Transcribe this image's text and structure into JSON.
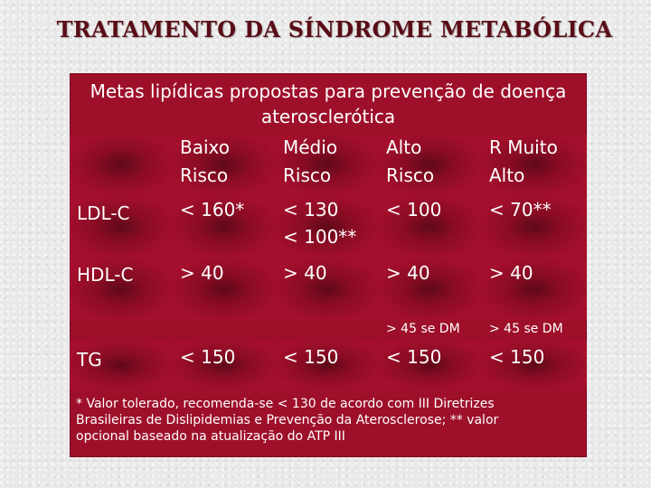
{
  "title": "TRATAMENTO DA SÍNDROME METABÓLICA",
  "heading": {
    "line1": "Metas lipídicas propostas para prevenção de doença",
    "line2": "aterosclerótica"
  },
  "columns": [
    {
      "line1": "Baixo",
      "line2": "Risco"
    },
    {
      "line1": "Médio",
      "line2": "Risco"
    },
    {
      "line1": "Alto",
      "line2": "Risco"
    },
    {
      "line1": "R Muito",
      "line2": "Alto"
    }
  ],
  "rows": {
    "ldl": {
      "label": "LDL-C",
      "baixo": "< 160*",
      "medio": "< 130",
      "medio2": "< 100**",
      "alto": "< 100",
      "muito": "< 70**"
    },
    "hdl": {
      "label": "HDL-C",
      "baixo": "> 40",
      "medio": "> 40",
      "alto": "> 40",
      "alto_note": "> 45 se DM",
      "muito": "> 40",
      "muito_note": "> 45 se DM"
    },
    "tg": {
      "label": "TG",
      "baixo": "< 150",
      "medio": "< 150",
      "alto": "< 150",
      "muito": "< 150"
    }
  },
  "footnote": {
    "line1": "* Valor tolerado, recomenda-se < 130 de acordo com III Diretrizes",
    "line2": "Brasileiras de Dislipidemias e Prevenção da Aterosclerose; ** valor",
    "line3": "opcional baseado na atualização do ATP III"
  }
}
